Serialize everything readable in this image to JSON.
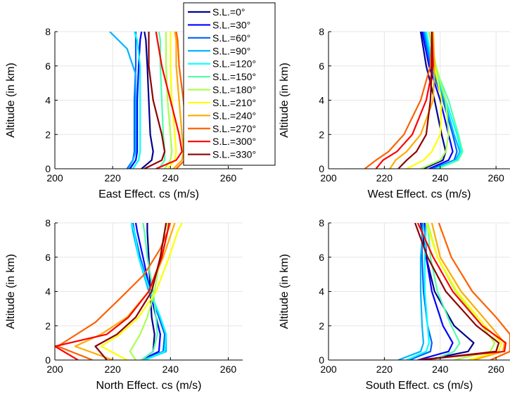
{
  "chart_data": [
    {
      "type": "line",
      "xlabel": "East Effect. cs (m/s)",
      "ylabel": "Altitude (in km)",
      "xlim": [
        200,
        265
      ],
      "ylim": [
        0,
        8
      ],
      "xticks": [
        "200",
        "220",
        "240",
        "260"
      ],
      "yticks": [
        "0",
        "2",
        "4",
        "6",
        "8"
      ],
      "grid": true,
      "series": [
        {
          "name": "S.L.=0°",
          "x": [
            230,
            233.5,
            234,
            233,
            232.5,
            232,
            231.5,
            231
          ],
          "y": [
            0,
            0.5,
            1,
            2,
            4,
            6,
            7.5,
            8
          ]
        },
        {
          "name": "S.L.=30°",
          "x": [
            226,
            228,
            228.5,
            228.5,
            228.5,
            229,
            229.5,
            230
          ],
          "y": [
            0,
            0.5,
            1,
            2,
            4,
            6,
            7.5,
            8
          ]
        },
        {
          "name": "S.L.=60°",
          "x": [
            225,
            227,
            227.5,
            227.5,
            227.5,
            228,
            228,
            228
          ],
          "y": [
            0,
            0.5,
            1,
            2,
            4,
            6,
            7.5,
            8
          ]
        },
        {
          "name": "S.L.=90°",
          "x": [
            225.5,
            227,
            228,
            228,
            228,
            228,
            225,
            219
          ],
          "y": [
            0,
            0.5,
            1,
            2,
            4,
            5.5,
            7,
            8
          ]
        },
        {
          "name": "S.L.=120°",
          "x": [
            227,
            229,
            229.5,
            229.5,
            229.5,
            229.5,
            228.5,
            227.5
          ],
          "y": [
            0,
            0.5,
            1,
            2,
            4,
            6,
            7.5,
            8
          ]
        },
        {
          "name": "S.L.=150°",
          "x": [
            236,
            238,
            238,
            237.5,
            237,
            236.5,
            236.5,
            236
          ],
          "y": [
            0,
            0.5,
            1,
            2,
            4,
            6,
            7.5,
            8
          ]
        },
        {
          "name": "S.L.=180°",
          "x": [
            238,
            240,
            240.5,
            240,
            239,
            238.5,
            238.5,
            238.5
          ],
          "y": [
            0,
            0.5,
            1,
            2,
            4,
            6,
            7.5,
            8
          ]
        },
        {
          "name": "S.L.=210°",
          "x": [
            239,
            241.5,
            242,
            241.5,
            240.5,
            240,
            240,
            240
          ],
          "y": [
            0,
            0.5,
            1,
            2,
            4,
            6,
            7.5,
            8
          ]
        },
        {
          "name": "S.L.=240°",
          "x": [
            241,
            244,
            244.5,
            244,
            243,
            242,
            242,
            241.5
          ],
          "y": [
            0,
            0.5,
            1,
            2,
            4,
            6,
            7.5,
            8
          ]
        },
        {
          "name": "S.L.=270°",
          "x": [
            242,
            245,
            246,
            245.5,
            244.5,
            243,
            242.5,
            242
          ],
          "y": [
            0,
            0.5,
            1,
            2,
            4,
            6,
            7.5,
            8
          ]
        },
        {
          "name": "S.L.=300°",
          "x": [
            235,
            242,
            244,
            243,
            240,
            237,
            235.5,
            235
          ],
          "y": [
            0,
            0.5,
            1,
            2,
            4,
            6,
            7.5,
            8
          ]
        },
        {
          "name": "S.L.=330°",
          "x": [
            231,
            237,
            238,
            237,
            234,
            232.5,
            232.5,
            232.5
          ],
          "y": [
            0,
            0.5,
            1,
            2,
            4,
            6,
            7.5,
            8
          ]
        }
      ]
    },
    {
      "type": "line",
      "xlabel": "West Effect. cs (m/s)",
      "ylabel": "Altitude (in km)",
      "xlim": [
        200,
        265
      ],
      "ylim": [
        0,
        8
      ],
      "xticks": [
        "200",
        "220",
        "240",
        "260"
      ],
      "yticks": [
        "0",
        "2",
        "4",
        "6",
        "8"
      ],
      "grid": true,
      "series": [
        {
          "name": "S.L.=0°",
          "x": [
            234,
            241,
            242,
            240.5,
            238,
            235,
            233
          ],
          "y": [
            0,
            0.5,
            1,
            2,
            4,
            6,
            8
          ]
        },
        {
          "name": "S.L.=30°",
          "x": [
            236,
            243,
            244.5,
            243,
            240,
            236,
            233.5
          ],
          "y": [
            0,
            0.5,
            1,
            2,
            4,
            6,
            8
          ]
        },
        {
          "name": "S.L.=60°",
          "x": [
            237,
            245,
            246,
            244.5,
            241,
            236.5,
            234
          ],
          "y": [
            0,
            0.5,
            1,
            2,
            4,
            6,
            8
          ]
        },
        {
          "name": "S.L.=90°",
          "x": [
            238,
            245.5,
            247,
            245,
            241.5,
            237,
            234.5
          ],
          "y": [
            0,
            0.5,
            1,
            2,
            4,
            6,
            8
          ]
        },
        {
          "name": "S.L.=120°",
          "x": [
            238.5,
            246,
            247.5,
            246,
            242,
            237.5,
            235
          ],
          "y": [
            0,
            0.5,
            1,
            2,
            4,
            6,
            8
          ]
        },
        {
          "name": "S.L.=150°",
          "x": [
            239,
            246.5,
            248,
            246.5,
            243,
            238,
            236
          ],
          "y": [
            0,
            0.5,
            1,
            2,
            4,
            6,
            8
          ]
        },
        {
          "name": "S.L.=180°",
          "x": [
            233,
            240,
            242,
            243,
            242,
            238.5,
            236
          ],
          "y": [
            0,
            0.5,
            1,
            2,
            4,
            6,
            8
          ]
        },
        {
          "name": "S.L.=210°",
          "x": [
            228,
            234,
            237,
            240,
            240.5,
            238,
            237
          ],
          "y": [
            0,
            0.5,
            1,
            2,
            4,
            6,
            8
          ]
        },
        {
          "name": "S.L.=240°",
          "x": [
            222,
            224,
            228,
            233,
            237.5,
            238,
            237.5
          ],
          "y": [
            0,
            0.5,
            1,
            2,
            4,
            6,
            8
          ]
        },
        {
          "name": "S.L.=270°",
          "x": [
            213,
            217,
            221.5,
            227,
            233,
            236.5,
            237
          ],
          "y": [
            0,
            0.5,
            1,
            2,
            4,
            6,
            8
          ]
        },
        {
          "name": "S.L.=300°",
          "x": [
            217,
            219.5,
            224.5,
            230,
            235,
            237.5,
            237
          ],
          "y": [
            0,
            0.5,
            1,
            2,
            4,
            6,
            8
          ]
        },
        {
          "name": "S.L.=330°",
          "x": [
            225,
            228,
            231.5,
            235,
            236.5,
            237,
            237
          ],
          "y": [
            0,
            0.5,
            1,
            2,
            4,
            6,
            8
          ]
        }
      ]
    },
    {
      "type": "line",
      "xlabel": "North Effect. cs (m/s)",
      "ylabel": "Altitude (in km)",
      "xlim": [
        200,
        265
      ],
      "ylim": [
        0,
        8
      ],
      "xticks": [
        "200",
        "220",
        "240",
        "260"
      ],
      "yticks": [
        "0",
        "2",
        "4",
        "6",
        "8"
      ],
      "grid": true,
      "series": [
        {
          "name": "S.L.=0°",
          "x": [
            230,
            234,
            234.5,
            233.5,
            233,
            232.5,
            232,
            232
          ],
          "y": [
            0,
            0.5,
            1.5,
            2.5,
            4,
            6,
            7.5,
            8
          ]
        },
        {
          "name": "S.L.=30°",
          "x": [
            230,
            236,
            236.5,
            235,
            233,
            230.5,
            228.5,
            228
          ],
          "y": [
            0,
            0.5,
            1.5,
            2.5,
            4,
            6,
            7.5,
            8
          ]
        },
        {
          "name": "S.L.=60°",
          "x": [
            230.5,
            237.5,
            238,
            236,
            233,
            229.5,
            227.5,
            227
          ],
          "y": [
            0,
            0.5,
            1.5,
            2.5,
            4,
            6,
            7.5,
            8
          ]
        },
        {
          "name": "S.L.=90°",
          "x": [
            231,
            238.5,
            238.5,
            236.5,
            232.5,
            229,
            227,
            226.5
          ],
          "y": [
            0,
            0.5,
            1.5,
            2.5,
            4,
            6,
            7.5,
            8
          ]
        },
        {
          "name": "S.L.=120°",
          "x": [
            231,
            238,
            238.5,
            236.5,
            233,
            229,
            227.5,
            226.5
          ],
          "y": [
            0,
            0.5,
            1.5,
            2.5,
            4,
            6,
            7.5,
            8
          ]
        },
        {
          "name": "S.L.=150°",
          "x": [
            230,
            234,
            235.5,
            235,
            234,
            232,
            231,
            230.5
          ],
          "y": [
            0,
            0.5,
            1.5,
            2.5,
            4,
            6,
            7.5,
            8
          ]
        },
        {
          "name": "S.L.=180°",
          "x": [
            228,
            226,
            229.5,
            232,
            234.5,
            236.5,
            238,
            239
          ],
          "y": [
            0,
            0.5,
            1.5,
            2.5,
            4,
            6,
            7.5,
            8
          ]
        },
        {
          "name": "S.L.=210°",
          "x": [
            225,
            216,
            222.5,
            229,
            235,
            239.5,
            242.5,
            244
          ],
          "y": [
            0,
            0.8,
            1.5,
            2.5,
            4,
            6,
            7.5,
            8
          ]
        },
        {
          "name": "S.L.=240°",
          "x": [
            220,
            207,
            216,
            225,
            232.5,
            237.5,
            240.5,
            241.5
          ],
          "y": [
            0,
            0.8,
            1.5,
            2.5,
            4,
            6,
            7.5,
            8
          ]
        },
        {
          "name": "S.L.=270°",
          "x": [
            213,
            201,
            214,
            222,
            231,
            236.5,
            239,
            240
          ],
          "y": [
            0,
            0.8,
            2.2,
            3.5,
            5,
            6.5,
            7.5,
            8
          ]
        },
        {
          "name": "S.L.=300°",
          "x": [
            208,
            200,
            218,
            225.5,
            232.5,
            237,
            239,
            239.5
          ],
          "y": [
            0,
            0.8,
            1.5,
            2.5,
            4,
            6,
            7.5,
            8
          ]
        },
        {
          "name": "S.L.=330°",
          "x": [
            218,
            214,
            221.5,
            228,
            233.5,
            236.5,
            238,
            238.5
          ],
          "y": [
            0,
            0.8,
            1.5,
            2.5,
            4,
            6,
            7.5,
            8
          ]
        }
      ]
    },
    {
      "type": "line",
      "xlabel": "South Effect. cs (m/s)",
      "ylabel": "Altitude (in km)",
      "xlim": [
        200,
        265
      ],
      "ylim": [
        0,
        8
      ],
      "xticks": [
        "200",
        "220",
        "240",
        "260"
      ],
      "yticks": [
        "0",
        "2",
        "4",
        "6",
        "8"
      ],
      "grid": true,
      "series": [
        {
          "name": "S.L.=0°",
          "x": [
            235,
            250,
            252,
            245,
            238,
            235,
            233
          ],
          "y": [
            0,
            0.5,
            1,
            2,
            4,
            6,
            8
          ]
        },
        {
          "name": "S.L.=30°",
          "x": [
            232,
            243,
            244.5,
            241,
            237,
            235,
            234.5
          ],
          "y": [
            0,
            0.5,
            1,
            2,
            4,
            6,
            8
          ]
        },
        {
          "name": "S.L.=60°",
          "x": [
            229,
            236.5,
            237,
            235.5,
            234,
            233.5,
            233.5
          ],
          "y": [
            0,
            0.5,
            1,
            2,
            4,
            6,
            8
          ]
        },
        {
          "name": "S.L.=90°",
          "x": [
            225,
            233,
            234,
            233.5,
            233,
            233,
            234
          ],
          "y": [
            0,
            0.5,
            1,
            2,
            4,
            6,
            8
          ]
        },
        {
          "name": "S.L.=120°",
          "x": [
            228,
            235,
            236,
            235.5,
            234.5,
            234.5,
            235
          ],
          "y": [
            0,
            0.5,
            1,
            2,
            4,
            6,
            8
          ]
        },
        {
          "name": "S.L.=150°",
          "x": [
            237,
            245,
            247,
            244,
            239,
            236.5,
            235.5
          ],
          "y": [
            0,
            0.5,
            1,
            2,
            4,
            6,
            8
          ]
        },
        {
          "name": "S.L.=180°",
          "x": [
            245,
            258,
            259.5,
            255,
            245.5,
            239,
            235.5
          ],
          "y": [
            0,
            0.5,
            1,
            2,
            4,
            6,
            8
          ]
        },
        {
          "name": "S.L.=210°",
          "x": [
            250,
            261,
            262,
            256,
            246,
            239,
            235
          ],
          "y": [
            0,
            0.5,
            1,
            2,
            4,
            6,
            8
          ]
        },
        {
          "name": "S.L.=240°",
          "x": [
            252,
            262.5,
            263,
            258,
            247.5,
            240,
            237
          ],
          "y": [
            0,
            0.5,
            1,
            2,
            4,
            6,
            8
          ]
        },
        {
          "name": "S.L.=270°",
          "x": [
            258,
            265,
            265,
            260,
            251.5,
            244,
            239.5
          ],
          "y": [
            0,
            0.5,
            1.5,
            2.5,
            4,
            6,
            8
          ]
        },
        {
          "name": "S.L.=300°",
          "x": [
            232,
            263,
            263.5,
            255,
            244.5,
            237.5,
            232
          ],
          "y": [
            0,
            0.5,
            1,
            2,
            4,
            6,
            8
          ]
        },
        {
          "name": "S.L.=330°",
          "x": [
            233,
            260,
            261,
            253,
            242,
            235.5,
            231
          ],
          "y": [
            0,
            0.5,
            1,
            2,
            4,
            6,
            8
          ]
        }
      ]
    }
  ],
  "legend": {
    "placement": "top-center",
    "entries": [
      "S.L.=0°",
      "S.L.=30°",
      "S.L.=60°",
      "S.L.=90°",
      "S.L.=120°",
      "S.L.=150°",
      "S.L.=180°",
      "S.L.=210°",
      "S.L.=240°",
      "S.L.=270°",
      "S.L.=300°",
      "S.L.=330°"
    ],
    "colors": [
      "#00008f",
      "#0000ff",
      "#0060ff",
      "#00b4ff",
      "#00ffff",
      "#50ffaa",
      "#aaff50",
      "#ffff00",
      "#ffaa00",
      "#ff6000",
      "#ff0000",
      "#8f0000"
    ]
  }
}
